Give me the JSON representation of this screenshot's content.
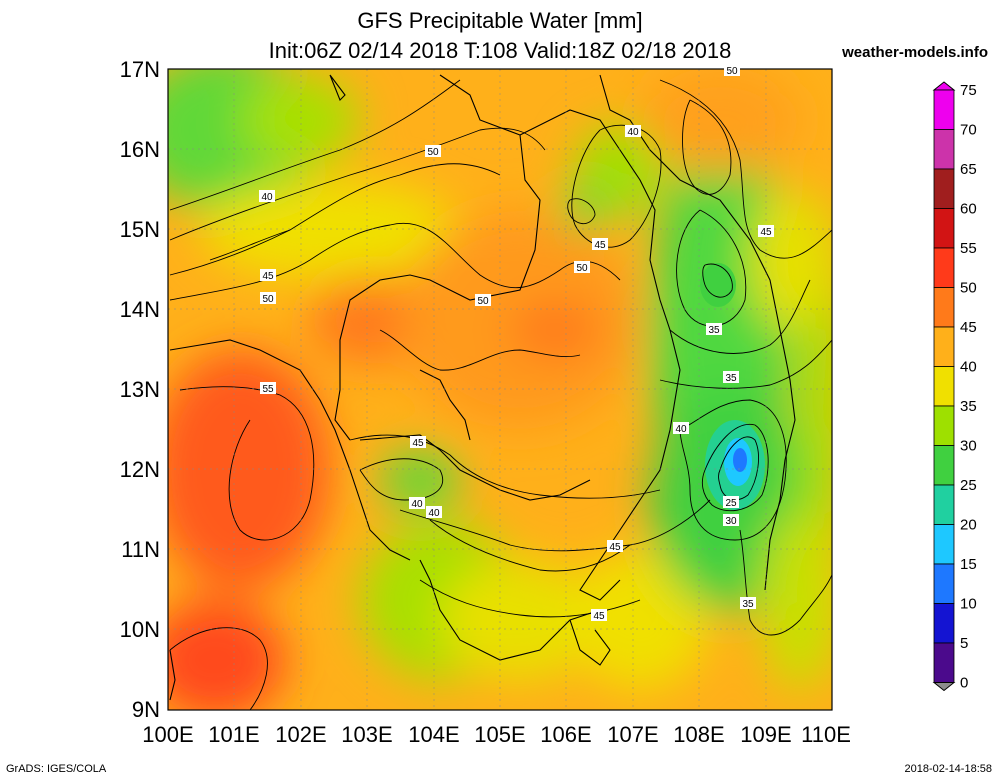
{
  "header": {
    "title": "GFS Precipitable Water [mm]",
    "subtitle": "Init:06Z 02/14 2018 T:108 Valid:18Z 02/18 2018",
    "site": "weather-models.info"
  },
  "footer": {
    "left": "GrADS: IGES/COLA",
    "right": "2018-02-14-18:58"
  },
  "map": {
    "lat_labels": [
      "17N",
      "16N",
      "15N",
      "14N",
      "13N",
      "12N",
      "11N",
      "10N",
      "9N"
    ],
    "lon_labels": [
      "100E",
      "101E",
      "102E",
      "103E",
      "104E",
      "105E",
      "106E",
      "107E",
      "108E",
      "109E",
      "110E"
    ],
    "contour_labels": [
      "50",
      "40",
      "40",
      "50",
      "45",
      "45",
      "50",
      "50",
      "50",
      "35",
      "35",
      "45",
      "40",
      "45",
      "40",
      "40",
      "45",
      "45",
      "35",
      "55",
      "25",
      "30"
    ]
  },
  "colorbar": {
    "levels": [
      "75",
      "70",
      "65",
      "60",
      "55",
      "50",
      "45",
      "40",
      "35",
      "30",
      "25",
      "20",
      "15",
      "10",
      "5",
      "0"
    ],
    "colors": [
      "#ee00ee",
      "#cc33aa",
      "#a01e1e",
      "#d21414",
      "#ff3a1a",
      "#ff7a1a",
      "#ffb01a",
      "#f0e000",
      "#9ee000",
      "#40d040",
      "#20d0a0",
      "#1ec8ff",
      "#1e78ff",
      "#1414d2",
      "#4b0a8c",
      "#8c8c8c"
    ]
  }
}
